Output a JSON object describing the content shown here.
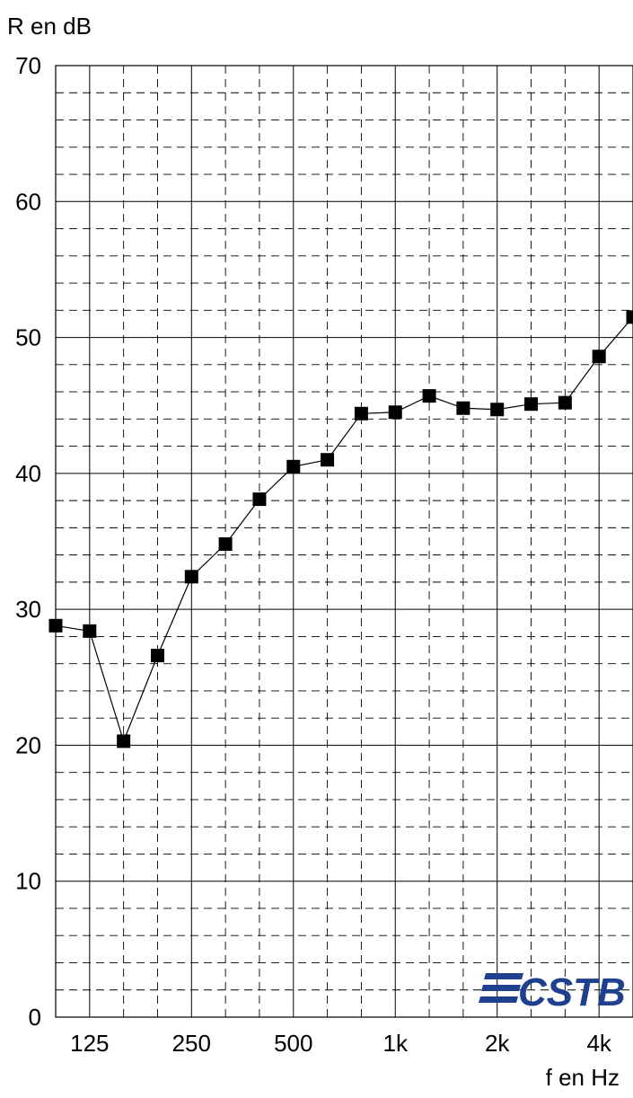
{
  "chart_data": {
    "type": "line",
    "ylabel": "R en dB",
    "xlabel": "f en Hz",
    "ylim": [
      0,
      70
    ],
    "y_ticks": [
      "0",
      "10",
      "20",
      "30",
      "40",
      "50",
      "60",
      "70"
    ],
    "x_tick_labels": [
      "125",
      "250",
      "500",
      "1k",
      "2k",
      "4k"
    ],
    "x_scale": "log (third-octave bands)",
    "grid": true,
    "marker": "square",
    "series": [
      {
        "x": [
          100,
          125,
          160,
          200,
          250,
          315,
          400,
          500,
          630,
          800,
          1000,
          1250,
          1600,
          2000,
          2500,
          3150,
          4000,
          5000
        ],
        "values": [
          28.8,
          28.4,
          20.3,
          26.6,
          32.4,
          34.8,
          38.1,
          40.5,
          41.0,
          44.4,
          44.5,
          45.7,
          44.8,
          44.7,
          45.1,
          45.2,
          48.6,
          51.5
        ]
      }
    ]
  },
  "logo": {
    "text": "CSTB",
    "color": "#1f3f8f"
  }
}
